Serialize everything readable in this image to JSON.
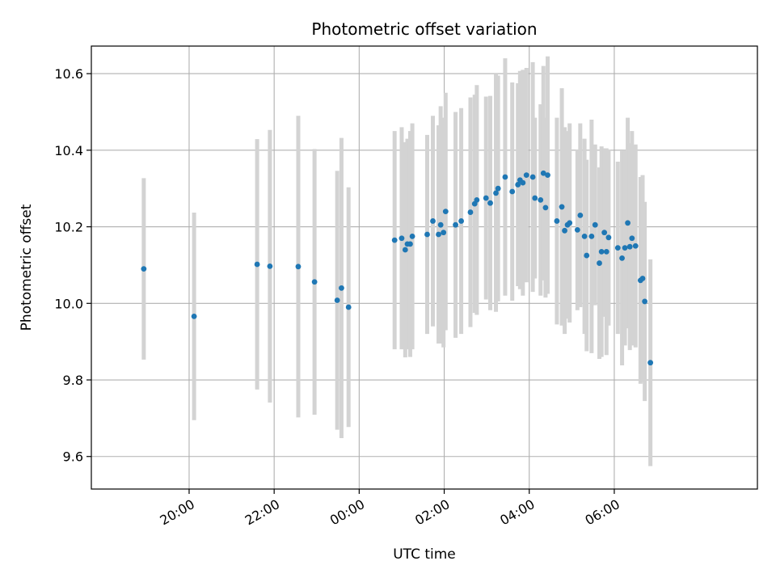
{
  "chart_data": {
    "type": "scatter",
    "title": "Photometric offset variation",
    "xlabel": "UTC time",
    "ylabel": "Photometric offset",
    "x_unit": "minutes after 00:00 UTC",
    "xlim": [
      -378,
      562
    ],
    "ylim": [
      9.515,
      10.672
    ],
    "grid": true,
    "x_ticks": [
      {
        "value": -240,
        "label": "20:00"
      },
      {
        "value": -120,
        "label": "22:00"
      },
      {
        "value": 0,
        "label": "00:00"
      },
      {
        "value": 120,
        "label": "02:00"
      },
      {
        "value": 240,
        "label": "04:00"
      },
      {
        "value": 360,
        "label": "06:00"
      }
    ],
    "y_ticks": [
      {
        "value": 9.6,
        "label": "9.6"
      },
      {
        "value": 9.8,
        "label": "9.8"
      },
      {
        "value": 10.0,
        "label": "10.0"
      },
      {
        "value": 10.2,
        "label": "10.2"
      },
      {
        "value": 10.4,
        "label": "10.4"
      },
      {
        "value": 10.6,
        "label": "10.6"
      }
    ],
    "colors": {
      "points": "#1f77b4",
      "error_bars": "#d3d3d3"
    },
    "series": [
      {
        "points": [
          [
            -304,
            10.09,
            0.237
          ],
          [
            -233,
            9.966,
            0.271
          ],
          [
            -144,
            10.102,
            0.327
          ],
          [
            -126,
            10.097,
            0.356
          ],
          [
            -86,
            10.096,
            0.394
          ],
          [
            -63,
            10.056,
            0.347
          ],
          [
            -31,
            10.008,
            0.338
          ],
          [
            -25,
            10.04,
            0.392
          ],
          [
            -15,
            9.99,
            0.313
          ],
          [
            50,
            10.165,
            0.285
          ],
          [
            60,
            10.17,
            0.29
          ],
          [
            65,
            10.14,
            0.281
          ],
          [
            68,
            10.155,
            0.275
          ],
          [
            72,
            10.155,
            0.295
          ],
          [
            75,
            10.175,
            0.295
          ],
          [
            96,
            10.18,
            0.26
          ],
          [
            104,
            10.215,
            0.275
          ],
          [
            112,
            10.18,
            0.285
          ],
          [
            115,
            10.205,
            0.31
          ],
          [
            119,
            10.185,
            0.3
          ],
          [
            122,
            10.24,
            0.31
          ],
          [
            136,
            10.205,
            0.295
          ],
          [
            144,
            10.215,
            0.295
          ],
          [
            157,
            10.238,
            0.3
          ],
          [
            163,
            10.26,
            0.285
          ],
          [
            166,
            10.27,
            0.3
          ],
          [
            179,
            10.275,
            0.265
          ],
          [
            185,
            10.262,
            0.28
          ],
          [
            193,
            10.288,
            0.31
          ],
          [
            196,
            10.3,
            0.295
          ],
          [
            206,
            10.33,
            0.31
          ],
          [
            216,
            10.292,
            0.285
          ],
          [
            224,
            10.31,
            0.265
          ],
          [
            227,
            10.322,
            0.285
          ],
          [
            231,
            10.315,
            0.295
          ],
          [
            236,
            10.335,
            0.28
          ],
          [
            245,
            10.33,
            0.3
          ],
          [
            248,
            10.275,
            0.21
          ],
          [
            256,
            10.27,
            0.25
          ],
          [
            260,
            10.34,
            0.28
          ],
          [
            263,
            10.25,
            0.235
          ],
          [
            266,
            10.335,
            0.31
          ],
          [
            279,
            10.215,
            0.27
          ],
          [
            286,
            10.252,
            0.31
          ],
          [
            290,
            10.19,
            0.27
          ],
          [
            294,
            10.205,
            0.245
          ],
          [
            297,
            10.21,
            0.26
          ],
          [
            308,
            10.192,
            0.21
          ],
          [
            312,
            10.23,
            0.24
          ],
          [
            318,
            10.175,
            0.255
          ],
          [
            321,
            10.125,
            0.25
          ],
          [
            328,
            10.175,
            0.305
          ],
          [
            333,
            10.205,
            0.21
          ],
          [
            339,
            10.105,
            0.25
          ],
          [
            342,
            10.135,
            0.275
          ],
          [
            346,
            10.185,
            0.22
          ],
          [
            349,
            10.135,
            0.27
          ],
          [
            352,
            10.172,
            0.23
          ],
          [
            365,
            10.145,
            0.225
          ],
          [
            371,
            10.118,
            0.28
          ],
          [
            375,
            10.145,
            0.255
          ],
          [
            379,
            10.21,
            0.275
          ],
          [
            382,
            10.148,
            0.27
          ],
          [
            385,
            10.17,
            0.28
          ],
          [
            390,
            10.15,
            0.265
          ],
          [
            397,
            10.06,
            0.27
          ],
          [
            400,
            10.065,
            0.27
          ],
          [
            403,
            10.005,
            0.26
          ],
          [
            411,
            9.845,
            0.27
          ]
        ]
      }
    ]
  }
}
